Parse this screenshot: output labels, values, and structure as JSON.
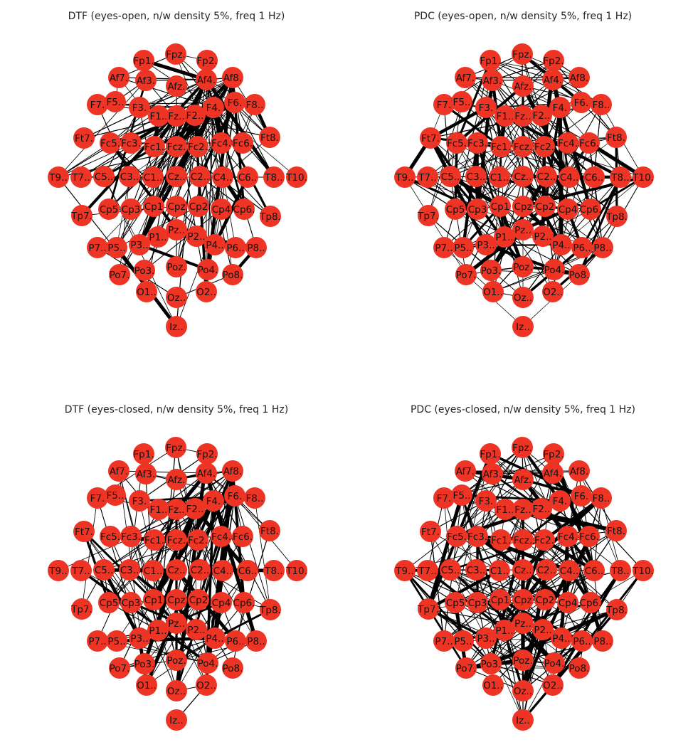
{
  "figure": {
    "node_color": "#ee3424",
    "edge_color": "#000000",
    "panels": [
      {
        "title": "DTF (eyes-open, n/w density 5%, freq 1 Hz)"
      },
      {
        "title": "PDC (eyes-open, n/w density 5%, freq 1 Hz)"
      },
      {
        "title": "DTF (eyes-closed, n/w density 5%, freq 1 Hz)"
      },
      {
        "title": "PDC (eyes-closed, n/w density 5%, freq 1 Hz)"
      }
    ],
    "nodes": [
      {
        "label": "Fp1."
      },
      {
        "label": "Fpz."
      },
      {
        "label": "Fp2."
      },
      {
        "label": "Af7."
      },
      {
        "label": "Af3."
      },
      {
        "label": "Afz."
      },
      {
        "label": "Af4."
      },
      {
        "label": "Af8."
      },
      {
        "label": "F7."
      },
      {
        "label": "F5.."
      },
      {
        "label": "F3."
      },
      {
        "label": "F1.."
      },
      {
        "label": "Fz.."
      },
      {
        "label": "F2.."
      },
      {
        "label": "F4."
      },
      {
        "label": "F6."
      },
      {
        "label": "F8.."
      },
      {
        "label": "Ft7."
      },
      {
        "label": "Fc5."
      },
      {
        "label": "Fc3."
      },
      {
        "label": "Fc1."
      },
      {
        "label": "Fcz."
      },
      {
        "label": "Fc2."
      },
      {
        "label": "Fc4."
      },
      {
        "label": "Fc6."
      },
      {
        "label": "Ft8."
      },
      {
        "label": "T9.."
      },
      {
        "label": "T7.."
      },
      {
        "label": "C5.."
      },
      {
        "label": "C3.."
      },
      {
        "label": "C1.."
      },
      {
        "label": "Cz.."
      },
      {
        "label": "C2.."
      },
      {
        "label": "C4.."
      },
      {
        "label": "C6.."
      },
      {
        "label": "T8.."
      },
      {
        "label": "T10."
      },
      {
        "label": "Tp7."
      },
      {
        "label": "Cp5"
      },
      {
        "label": "Cp3"
      },
      {
        "label": "Cp1"
      },
      {
        "label": "Cpz"
      },
      {
        "label": "Cp2"
      },
      {
        "label": "Cp4"
      },
      {
        "label": "Cp6."
      },
      {
        "label": "Tp8."
      },
      {
        "label": "P7.."
      },
      {
        "label": "P5.."
      },
      {
        "label": "P3.."
      },
      {
        "label": "P1.."
      },
      {
        "label": "Pz.."
      },
      {
        "label": "P2.."
      },
      {
        "label": "P4.."
      },
      {
        "label": "P6.."
      },
      {
        "label": "P8.."
      },
      {
        "label": "Po7."
      },
      {
        "label": "Po3."
      },
      {
        "label": "Poz."
      },
      {
        "label": "Po4."
      },
      {
        "label": "Po8."
      },
      {
        "label": "O1.."
      },
      {
        "label": "Oz.."
      },
      {
        "label": "O2.."
      },
      {
        "label": "Iz.."
      }
    ]
  }
}
